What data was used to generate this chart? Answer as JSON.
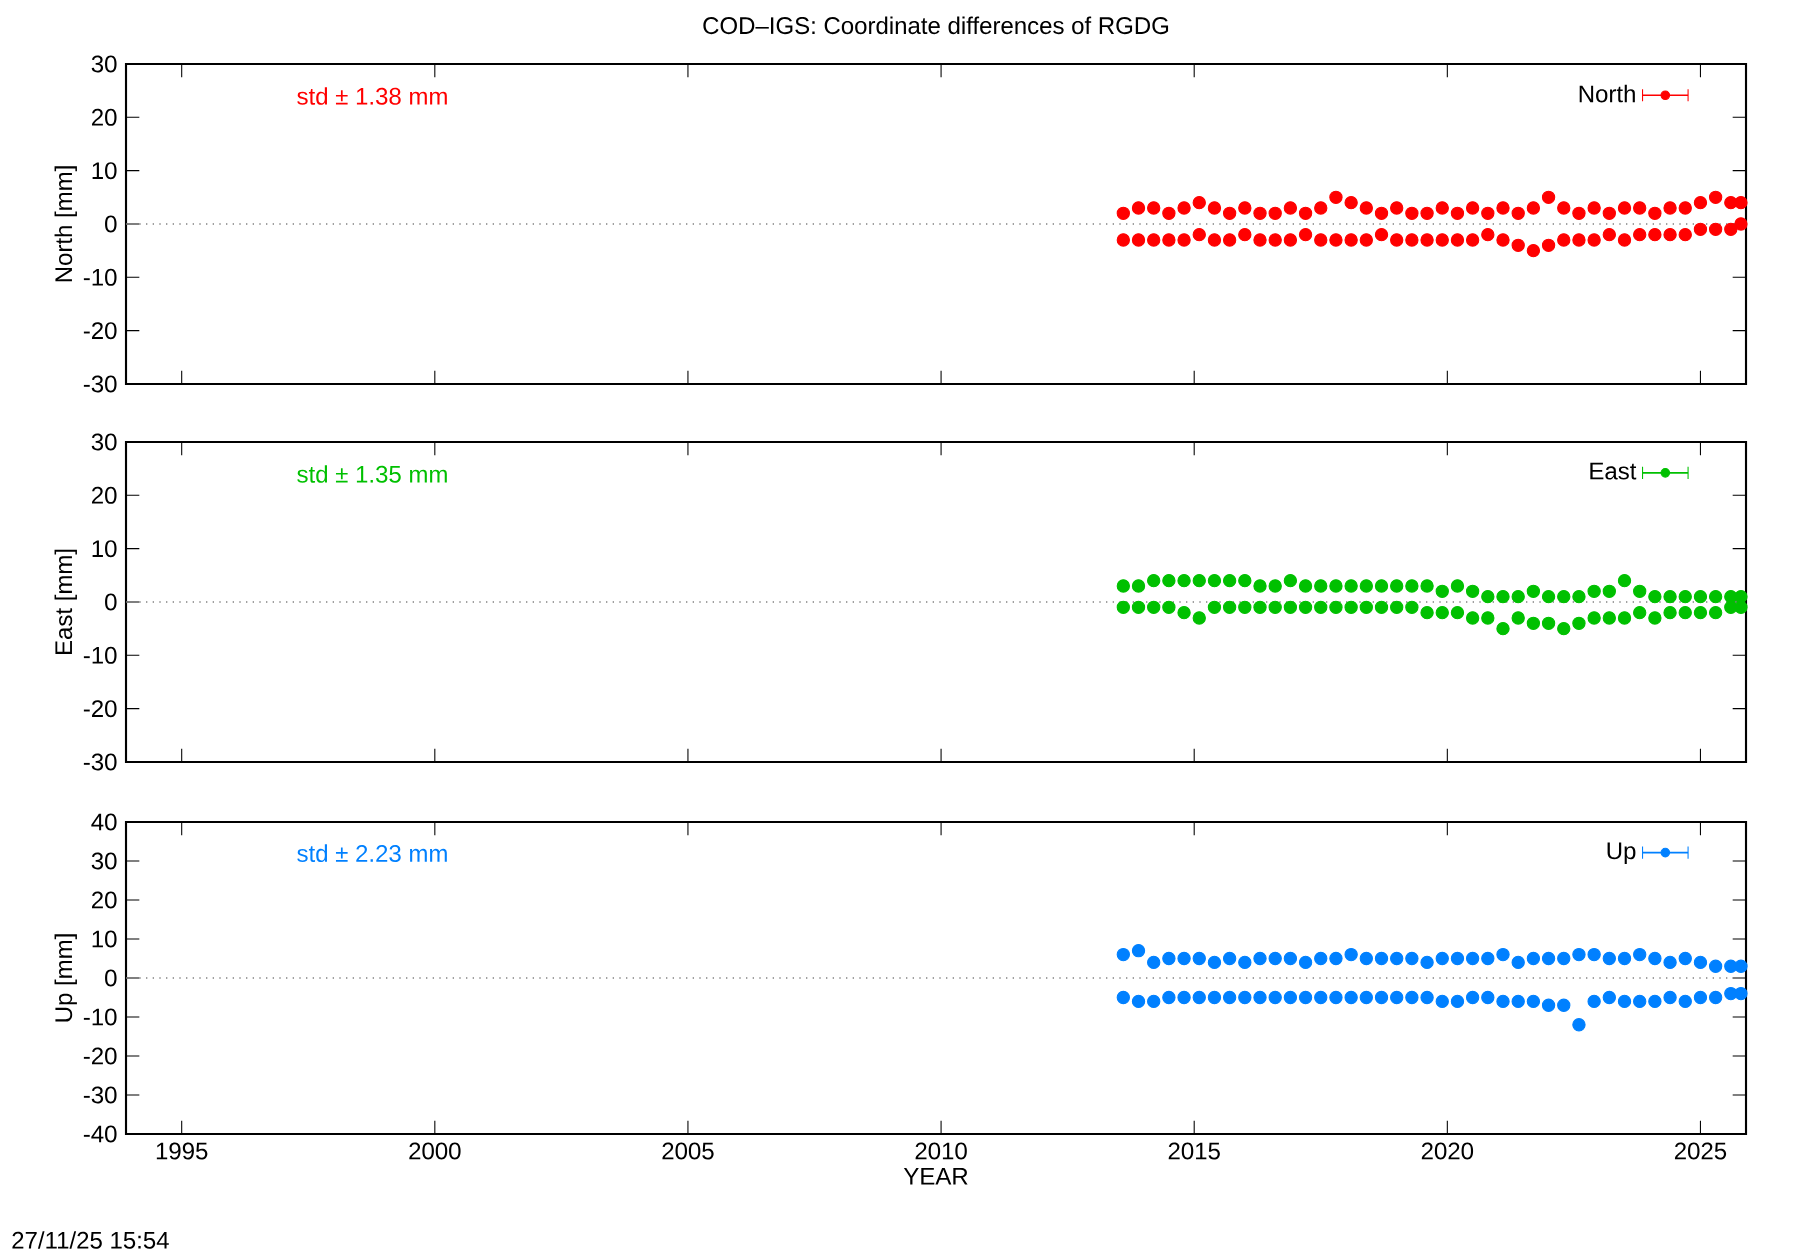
{
  "chart_data": [
    {
      "type": "scatter",
      "title": "COD–IGS: Coordinate differences of RGDG",
      "ylabel": "North [mm]",
      "annotations": [
        "std ± 1.38 mm"
      ],
      "xlim": [
        1993.9,
        2025.9
      ],
      "xticks": [
        1995,
        2000,
        2005,
        2010,
        2015,
        2020,
        2025
      ],
      "ylim": [
        -30,
        30
      ],
      "yticks": [
        -30,
        -20,
        -10,
        0,
        10,
        20,
        30
      ],
      "tick_labels": "y",
      "legend": "top right",
      "marker": "circle",
      "ref_lines": [
        {
          "axis": "y",
          "value": 0,
          "line_style": "dotted",
          "color": "#808080"
        }
      ],
      "series": [
        {
          "name": "North",
          "color": "#ff0000",
          "x": [
            2013.6,
            2013.6,
            2013.9,
            2013.9,
            2014.2,
            2014.2,
            2014.5,
            2014.5,
            2014.8,
            2014.8,
            2015.1,
            2015.1,
            2015.4,
            2015.4,
            2015.7,
            2015.7,
            2016.0,
            2016.0,
            2016.3,
            2016.3,
            2016.6,
            2016.6,
            2016.9,
            2016.9,
            2017.2,
            2017.2,
            2017.5,
            2017.5,
            2017.8,
            2017.8,
            2018.1,
            2018.1,
            2018.4,
            2018.4,
            2018.7,
            2018.7,
            2019.0,
            2019.0,
            2019.3,
            2019.3,
            2019.6,
            2019.6,
            2019.9,
            2019.9,
            2020.2,
            2020.2,
            2020.5,
            2020.5,
            2020.8,
            2020.8,
            2021.1,
            2021.1,
            2021.4,
            2021.4,
            2021.7,
            2021.7,
            2022.0,
            2022.0,
            2022.3,
            2022.3,
            2022.6,
            2022.6,
            2022.9,
            2022.9,
            2023.2,
            2023.2,
            2023.5,
            2023.5,
            2023.8,
            2023.8,
            2024.1,
            2024.1,
            2024.4,
            2024.4,
            2024.7,
            2024.7,
            2025.0,
            2025.0,
            2025.3,
            2025.3,
            2025.6,
            2025.6,
            2025.8,
            2025.8
          ],
          "values": [
            2,
            -3,
            3,
            -3,
            3,
            -3,
            2,
            -3,
            3,
            -3,
            4,
            -2,
            3,
            -3,
            2,
            -3,
            3,
            -2,
            2,
            -3,
            2,
            -3,
            3,
            -3,
            2,
            -2,
            3,
            -3,
            5,
            -3,
            4,
            -3,
            3,
            -3,
            2,
            -2,
            3,
            -3,
            2,
            -3,
            2,
            -3,
            3,
            -3,
            2,
            -3,
            3,
            -3,
            2,
            -2,
            3,
            -3,
            2,
            -4,
            3,
            -5,
            5,
            -4,
            3,
            -3,
            2,
            -3,
            3,
            -3,
            2,
            -2,
            3,
            -3,
            3,
            -2,
            2,
            -2,
            3,
            -2,
            3,
            -2,
            4,
            -1,
            5,
            -1,
            4,
            -1,
            4,
            0
          ]
        }
      ]
    },
    {
      "type": "scatter",
      "ylabel": "East [mm]",
      "annotations": [
        "std ± 1.35 mm"
      ],
      "xlim": [
        1993.9,
        2025.9
      ],
      "xticks": [
        1995,
        2000,
        2005,
        2010,
        2015,
        2020,
        2025
      ],
      "ylim": [
        -30,
        30
      ],
      "yticks": [
        -30,
        -20,
        -10,
        0,
        10,
        20,
        30
      ],
      "tick_labels": "y",
      "legend": "top right",
      "marker": "circle",
      "ref_lines": [
        {
          "axis": "y",
          "value": 0,
          "line_style": "dotted",
          "color": "#808080"
        }
      ],
      "series": [
        {
          "name": "East",
          "color": "#00c000",
          "x": [
            2013.6,
            2013.6,
            2013.9,
            2013.9,
            2014.2,
            2014.2,
            2014.5,
            2014.5,
            2014.8,
            2014.8,
            2015.1,
            2015.1,
            2015.4,
            2015.4,
            2015.7,
            2015.7,
            2016.0,
            2016.0,
            2016.3,
            2016.3,
            2016.6,
            2016.6,
            2016.9,
            2016.9,
            2017.2,
            2017.2,
            2017.5,
            2017.5,
            2017.8,
            2017.8,
            2018.1,
            2018.1,
            2018.4,
            2018.4,
            2018.7,
            2018.7,
            2019.0,
            2019.0,
            2019.3,
            2019.3,
            2019.6,
            2019.6,
            2019.9,
            2019.9,
            2020.2,
            2020.2,
            2020.5,
            2020.5,
            2020.8,
            2020.8,
            2021.1,
            2021.1,
            2021.4,
            2021.4,
            2021.7,
            2021.7,
            2022.0,
            2022.0,
            2022.3,
            2022.3,
            2022.6,
            2022.6,
            2022.9,
            2022.9,
            2023.2,
            2023.2,
            2023.5,
            2023.5,
            2023.8,
            2023.8,
            2024.1,
            2024.1,
            2024.4,
            2024.4,
            2024.7,
            2024.7,
            2025.0,
            2025.0,
            2025.3,
            2025.3,
            2025.6,
            2025.6,
            2025.8,
            2025.8
          ],
          "values": [
            3,
            -1,
            3,
            -1,
            4,
            -1,
            4,
            -1,
            4,
            -2,
            4,
            -3,
            4,
            -1,
            4,
            -1,
            4,
            -1,
            3,
            -1,
            3,
            -1,
            4,
            -1,
            3,
            -1,
            3,
            -1,
            3,
            -1,
            3,
            -1,
            3,
            -1,
            3,
            -1,
            3,
            -1,
            3,
            -1,
            3,
            -2,
            2,
            -2,
            3,
            -2,
            2,
            -3,
            1,
            -3,
            1,
            -5,
            1,
            -3,
            2,
            -4,
            1,
            -4,
            1,
            -5,
            1,
            -4,
            2,
            -3,
            2,
            -3,
            4,
            -3,
            2,
            -2,
            1,
            -3,
            1,
            -2,
            1,
            -2,
            1,
            -2,
            1,
            -2,
            1,
            -1,
            1,
            -1
          ]
        }
      ]
    },
    {
      "type": "scatter",
      "ylabel": "Up [mm]",
      "xlabel": "YEAR",
      "annotations": [
        "std ± 2.23 mm",
        "27/11/25 15:54"
      ],
      "xlim": [
        1993.9,
        2025.9
      ],
      "xticks": [
        1995,
        2000,
        2005,
        2010,
        2015,
        2020,
        2025
      ],
      "ylim": [
        -40,
        40
      ],
      "yticks": [
        -40,
        -30,
        -20,
        -10,
        0,
        10,
        20,
        30,
        40
      ],
      "legend": "top right",
      "marker": "circle",
      "ref_lines": [
        {
          "axis": "y",
          "value": 0,
          "line_style": "dotted",
          "color": "#808080"
        }
      ],
      "series": [
        {
          "name": "Up",
          "color": "#0080ff",
          "x": [
            2013.6,
            2013.6,
            2013.9,
            2013.9,
            2014.2,
            2014.2,
            2014.5,
            2014.5,
            2014.8,
            2014.8,
            2015.1,
            2015.1,
            2015.4,
            2015.4,
            2015.7,
            2015.7,
            2016.0,
            2016.0,
            2016.3,
            2016.3,
            2016.6,
            2016.6,
            2016.9,
            2016.9,
            2017.2,
            2017.2,
            2017.5,
            2017.5,
            2017.8,
            2017.8,
            2018.1,
            2018.1,
            2018.4,
            2018.4,
            2018.7,
            2018.7,
            2019.0,
            2019.0,
            2019.3,
            2019.3,
            2019.6,
            2019.6,
            2019.9,
            2019.9,
            2020.2,
            2020.2,
            2020.5,
            2020.5,
            2020.8,
            2020.8,
            2021.1,
            2021.1,
            2021.4,
            2021.4,
            2021.7,
            2021.7,
            2022.0,
            2022.0,
            2022.3,
            2022.3,
            2022.6,
            2022.6,
            2022.9,
            2022.9,
            2023.2,
            2023.2,
            2023.5,
            2023.5,
            2023.8,
            2023.8,
            2024.1,
            2024.1,
            2024.4,
            2024.4,
            2024.7,
            2024.7,
            2025.0,
            2025.0,
            2025.3,
            2025.3,
            2025.6,
            2025.6,
            2025.8,
            2025.8
          ],
          "values": [
            6,
            -5,
            7,
            -6,
            4,
            -6,
            5,
            -5,
            5,
            -5,
            5,
            -5,
            4,
            -5,
            5,
            -5,
            4,
            -5,
            5,
            -5,
            5,
            -5,
            5,
            -5,
            4,
            -5,
            5,
            -5,
            5,
            -5,
            6,
            -5,
            5,
            -5,
            5,
            -5,
            5,
            -5,
            5,
            -5,
            4,
            -5,
            5,
            -6,
            5,
            -6,
            5,
            -5,
            5,
            -5,
            6,
            -6,
            4,
            -6,
            5,
            -6,
            5,
            -7,
            5,
            -7,
            6,
            -12,
            6,
            -6,
            5,
            -5,
            5,
            -6,
            6,
            -6,
            5,
            -6,
            4,
            -5,
            5,
            -6,
            4,
            -5,
            3,
            -5,
            3,
            -4,
            3,
            -4
          ]
        }
      ]
    }
  ]
}
